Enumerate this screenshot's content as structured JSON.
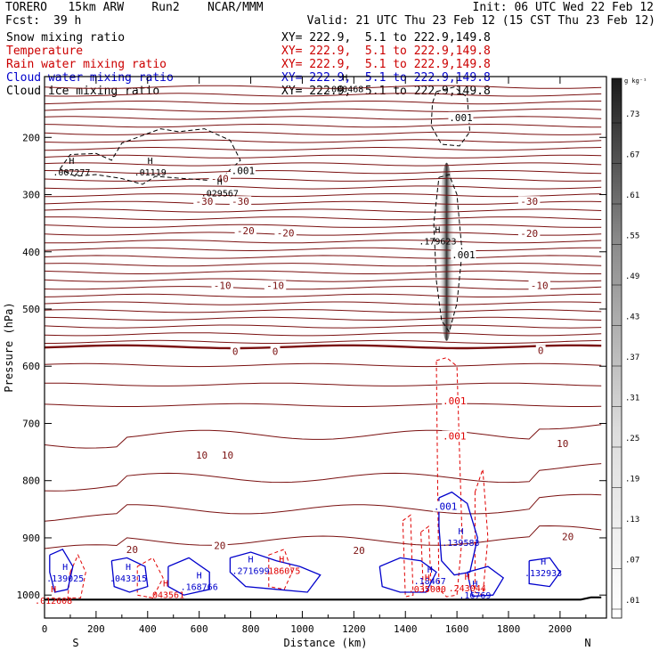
{
  "header": {
    "model": "TORERO   15km ARW    Run2    NCAR/MMM",
    "init": "Init: 06 UTC Wed 22 Feb 12",
    "fcst_label": "Fcst:",
    "fcst_value": "39 h",
    "valid": "Valid: 21 UTC Thu 23 Feb 12 (15 CST Thu 23 Feb 12)"
  },
  "legend": [
    {
      "name": "Snow mixing ratio",
      "range": "XY= 222.9,  5.1 to 222.9,149.8",
      "color": "#000000",
      "range_color": "#000000"
    },
    {
      "name": "Temperature",
      "range": "XY= 222.9,  5.1 to 222.9,149.8",
      "color": "#cc0000",
      "range_color": "#cc0000"
    },
    {
      "name": "Rain water mixing ratio",
      "range": "XY= 222.9,  5.1 to 222.9,149.8",
      "color": "#cc0000",
      "range_color": "#cc0000"
    },
    {
      "name": "Cloud water mixing ratio",
      "range": "XY= 222.9,  5.1 to 222.9,149.8",
      "color": "#0000cc",
      "range_color": "#0000cc"
    },
    {
      "name": "Cloud ice mixing ratio",
      "range": "XY= 222.9,  5.1 to 222.9,149.8",
      "color": "#000000",
      "range_color": "#000000"
    }
  ],
  "colors": {
    "temperature": "#7a1010",
    "rain": "#e00000",
    "cloud_water": "#0000cc",
    "snow": "#000000",
    "frame": "#000000"
  },
  "chart_data": {
    "type": "contour",
    "xlabel": "Distance (km)",
    "ylabel": "Pressure (hPa)",
    "xlim": [
      0,
      2180
    ],
    "ylim": [
      1010,
      100
    ],
    "x_ticks": [
      0,
      200,
      400,
      600,
      800,
      1000,
      1200,
      1400,
      1600,
      1800,
      2000
    ],
    "y_ticks": [
      200,
      300,
      400,
      500,
      600,
      700,
      800,
      900,
      1000
    ],
    "x_end_labels": {
      "left": "S",
      "right": "N"
    },
    "colorbar": {
      "units": "g kg⁻¹",
      "ticks": [
        ".01",
        ".07",
        ".13",
        ".19",
        ".25",
        ".31",
        ".37",
        ".43",
        ".49",
        ".55",
        ".61",
        ".67",
        ".73"
      ]
    },
    "temperature_labels": [
      {
        "text": "-40",
        "x": 680,
        "p": 272
      },
      {
        "text": "-30",
        "x": 620,
        "p": 312
      },
      {
        "text": "-30",
        "x": 760,
        "p": 312
      },
      {
        "text": "-30",
        "x": 1880,
        "p": 312
      },
      {
        "text": "-20",
        "x": 780,
        "p": 363
      },
      {
        "text": "-20",
        "x": 935,
        "p": 367
      },
      {
        "text": "-20",
        "x": 1880,
        "p": 368
      },
      {
        "text": "-10",
        "x": 690,
        "p": 459
      },
      {
        "text": "-10",
        "x": 895,
        "p": 459
      },
      {
        "text": "-10",
        "x": 1920,
        "p": 459
      },
      {
        "text": "0",
        "x": 740,
        "p": 574
      },
      {
        "text": "0",
        "x": 895,
        "p": 574
      },
      {
        "text": "0",
        "x": 1925,
        "p": 572
      },
      {
        "text": "10",
        "x": 610,
        "p": 755
      },
      {
        "text": "10",
        "x": 710,
        "p": 755
      },
      {
        "text": "10",
        "x": 2010,
        "p": 735
      },
      {
        "text": "20",
        "x": 340,
        "p": 920
      },
      {
        "text": "20",
        "x": 680,
        "p": 913
      },
      {
        "text": "20",
        "x": 1220,
        "p": 922
      },
      {
        "text": "20",
        "x": 2030,
        "p": 898
      }
    ],
    "snow_labels": [
      {
        "text": ".001",
        "x": 1615,
        "p": 165
      },
      {
        "text": ".001",
        "x": 770,
        "p": 258
      },
      {
        "text": ".001",
        "x": 1625,
        "p": 405
      }
    ],
    "rain_labels": [
      {
        "text": ".001",
        "x": 1590,
        "p": 660
      },
      {
        "text": ".001",
        "x": 1590,
        "p": 722
      }
    ],
    "cloud_water_labels": [
      {
        "text": ".001",
        "x": 1555,
        "p": 845
      }
    ],
    "maxima": [
      {
        "value": ".007277",
        "x": 105,
        "p": 260,
        "color": "#000000"
      },
      {
        "value": ".01119",
        "x": 410,
        "p": 260,
        "color": "#000000"
      },
      {
        "value": ".029567",
        "x": 680,
        "p": 297,
        "color": "#000000"
      },
      {
        "value": ".179623",
        "x": 1525,
        "p": 381,
        "color": "#000000"
      },
      {
        "value": ".000468",
        "x": 1165,
        "p": 115,
        "color": "#000000"
      },
      {
        "value": ".139025",
        "x": 80,
        "p": 970,
        "color": "#0000cc"
      },
      {
        "value": ".043315",
        "x": 325,
        "p": 970,
        "color": "#0000cc"
      },
      {
        "value": ".168766",
        "x": 600,
        "p": 985,
        "color": "#0000cc"
      },
      {
        "value": ".271699",
        "x": 800,
        "p": 957,
        "color": "#0000cc"
      },
      {
        "value": ".18467",
        "x": 1495,
        "p": 975,
        "color": "#0000cc"
      },
      {
        "value": ".139583",
        "x": 1615,
        "p": 908,
        "color": "#0000cc"
      },
      {
        "value": ".16769",
        "x": 1670,
        "p": 1000,
        "color": "#0000cc"
      },
      {
        "value": ".132933",
        "x": 1935,
        "p": 961,
        "color": "#0000cc"
      },
      {
        "value": ".012608",
        "x": 35,
        "p": 1009,
        "color": "#e00000"
      },
      {
        "value": ".043561",
        "x": 470,
        "p": 999,
        "color": "#e00000"
      },
      {
        "value": ".035000",
        "x": 1485,
        "p": 989,
        "color": "#e00000"
      },
      {
        "value": ".243044",
        "x": 1640,
        "p": 987,
        "color": "#e00000"
      },
      {
        "value": ".186075",
        "x": 920,
        "p": 957,
        "color": "#e00000"
      }
    ]
  }
}
